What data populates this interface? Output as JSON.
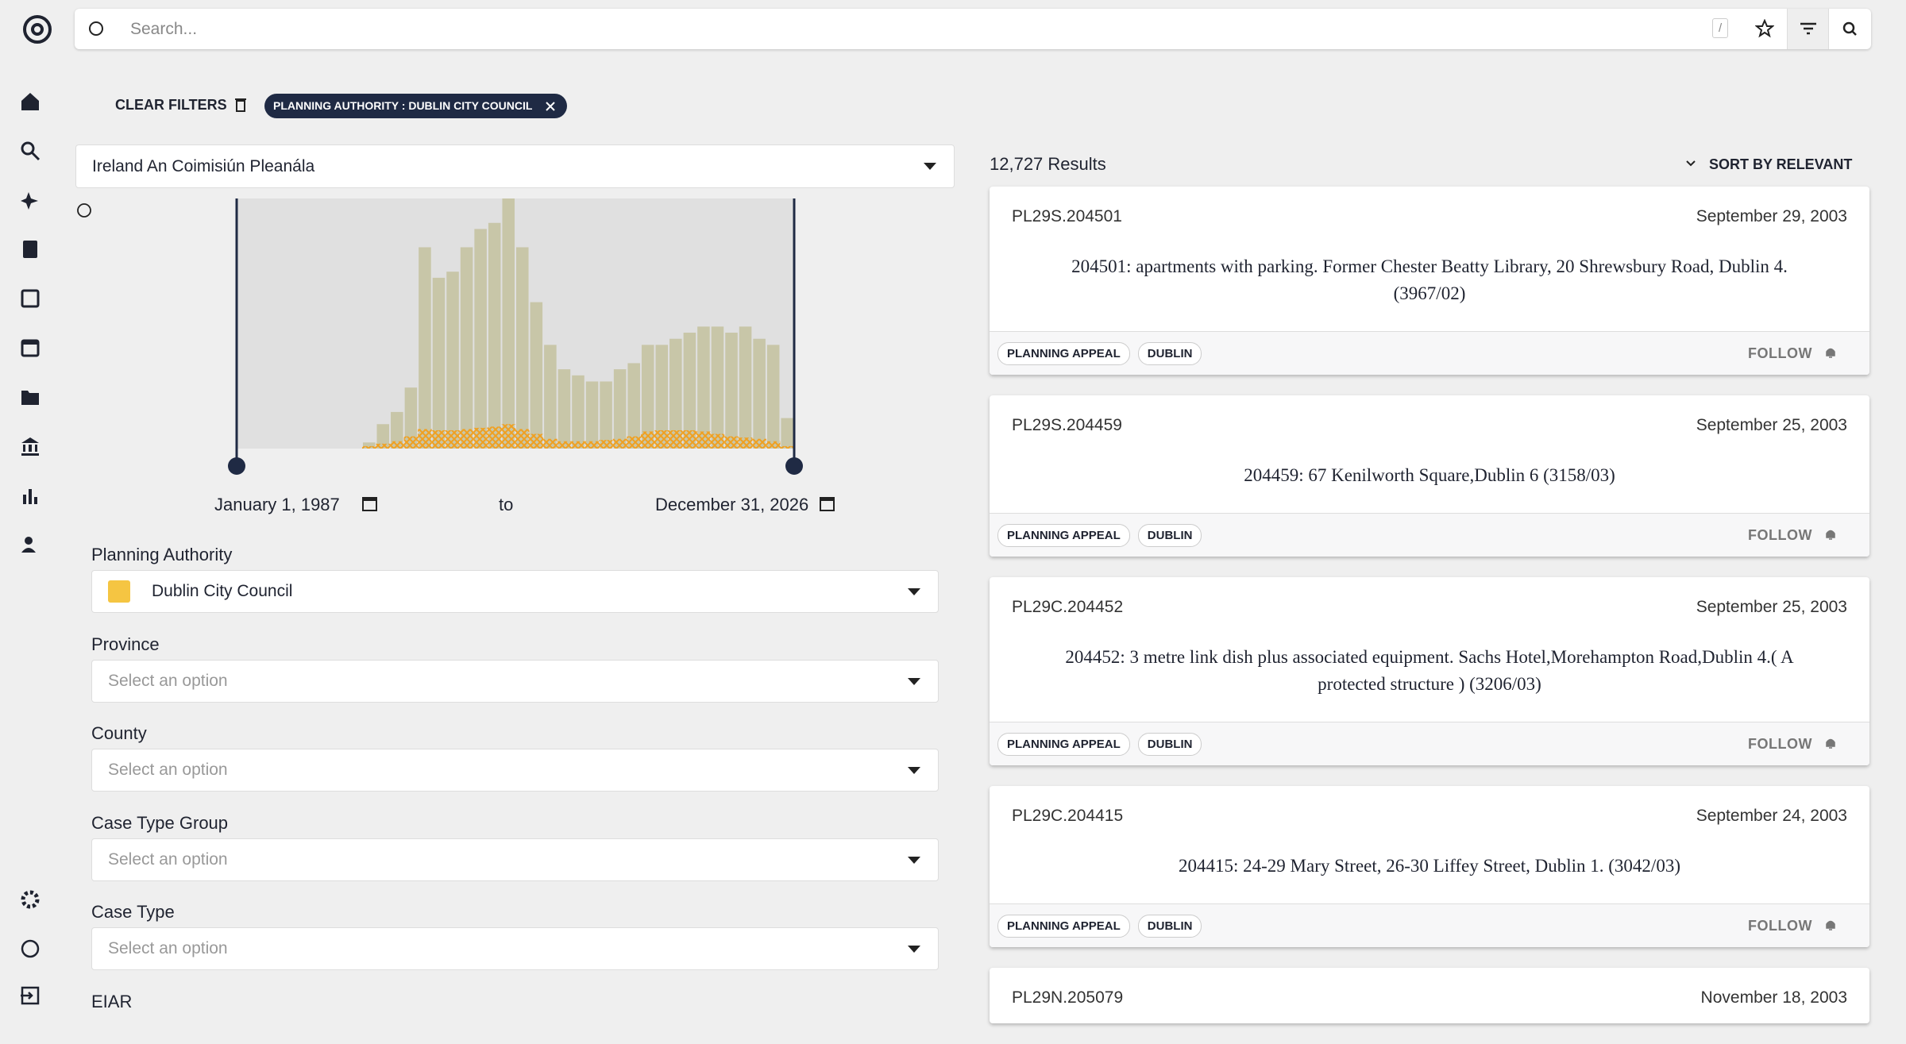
{
  "search": {
    "placeholder": "Search...",
    "shortcut": "/"
  },
  "filters": {
    "clear": "CLEAR FILTERS",
    "chips": [
      "PLANNING AUTHORITY : DUBLIN CITY COUNCIL"
    ]
  },
  "source_select": "Ireland An Coimisiún Pleanála",
  "histogram": {
    "values": [
      0,
      0,
      0,
      0,
      0,
      0,
      0,
      0,
      0,
      5,
      20,
      30,
      50,
      165,
      140,
      145,
      165,
      180,
      185,
      205,
      165,
      120,
      85,
      65,
      60,
      55,
      55,
      65,
      70,
      85,
      85,
      90,
      95,
      100,
      100,
      95,
      100,
      90,
      85,
      25
    ],
    "highlighted_values": [
      0,
      0,
      0,
      0,
      0,
      0,
      0,
      0,
      0,
      2,
      4,
      6,
      10,
      16,
      15,
      15,
      16,
      17,
      18,
      20,
      16,
      12,
      8,
      6,
      6,
      6,
      7,
      8,
      10,
      14,
      15,
      15,
      15,
      14,
      12,
      10,
      9,
      8,
      6,
      2
    ],
    "start_date": "January 1, 1987",
    "separator": "to",
    "end_date": "December 31, 2026"
  },
  "fields": [
    {
      "label": "Planning Authority",
      "value": "Dublin City Council"
    },
    {
      "label": "Province",
      "placeholder": "Select an option"
    },
    {
      "label": "County",
      "placeholder": "Select an option"
    },
    {
      "label": "Case Type Group",
      "placeholder": "Select an option"
    },
    {
      "label": "Case Type",
      "placeholder": "Select an option"
    },
    {
      "label": "EIAR"
    }
  ],
  "results": {
    "count": "12,727 Results",
    "sort": "SORT BY RELEVANT",
    "items": [
      {
        "id": "PL29S.204501",
        "date": "September 29, 2003",
        "title": "204501: apartments with parking. Former Chester Beatty Library, 20 Shrewsbury Road, Dublin 4. (3967/02)",
        "tags": [
          "PLANNING APPEAL",
          "DUBLIN"
        ],
        "action": "FOLLOW"
      },
      {
        "id": "PL29S.204459",
        "date": "September 25, 2003",
        "title": "204459: 67 Kenilworth Square,Dublin 6 (3158/03)",
        "tags": [
          "PLANNING APPEAL",
          "DUBLIN"
        ],
        "action": "FOLLOW"
      },
      {
        "id": "PL29C.204452",
        "date": "September 25, 2003",
        "title": "204452: 3 metre link dish plus associated equipment. Sachs Hotel,Morehampton Road,Dublin 4.( A protected structure ) (3206/03)",
        "tags": [
          "PLANNING APPEAL",
          "DUBLIN"
        ],
        "action": "FOLLOW"
      },
      {
        "id": "PL29C.204415",
        "date": "September 24, 2003",
        "title": "204415: 24-29 Mary Street, 26-30 Liffey Street, Dublin 1. (3042/03)",
        "tags": [
          "PLANNING APPEAL",
          "DUBLIN"
        ],
        "action": "FOLLOW"
      },
      {
        "id": "PL29N.205079",
        "date": "November 18, 2003"
      }
    ]
  }
}
